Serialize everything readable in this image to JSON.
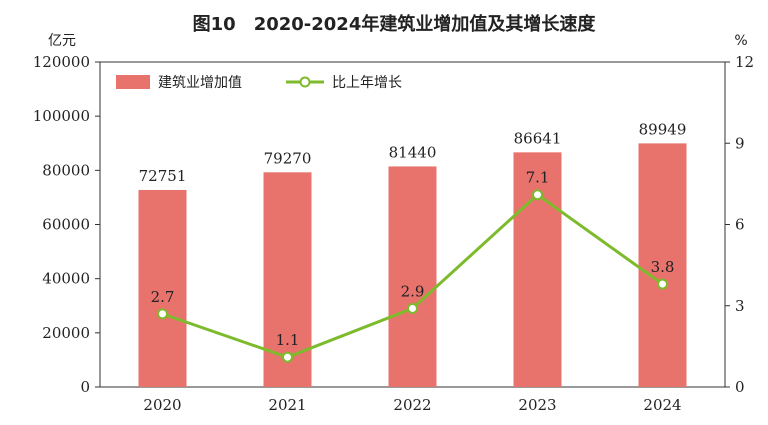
{
  "chart_data": {
    "type": "bar",
    "title": "图10　2020-2024年建筑业增加值及其增长速度",
    "left_unit": "亿元",
    "right_unit": "%",
    "categories": [
      "2020",
      "2021",
      "2022",
      "2023",
      "2024"
    ],
    "series": [
      {
        "name": "建筑业增加值",
        "type": "bar",
        "axis": "left",
        "color": "#e8726c",
        "values": [
          72751,
          79270,
          81440,
          86641,
          89949
        ]
      },
      {
        "name": "比上年增长",
        "type": "line",
        "axis": "right",
        "color": "#7dbb2d",
        "values": [
          2.7,
          1.1,
          2.9,
          7.1,
          3.8
        ]
      }
    ],
    "left_axis": {
      "min": 0,
      "max": 120000,
      "ticks": [
        0,
        20000,
        40000,
        60000,
        80000,
        100000,
        120000
      ]
    },
    "right_axis": {
      "min": 0,
      "max": 12,
      "ticks": [
        0,
        3,
        6,
        9,
        12
      ]
    },
    "legend_position": "top-left",
    "grid": false
  }
}
